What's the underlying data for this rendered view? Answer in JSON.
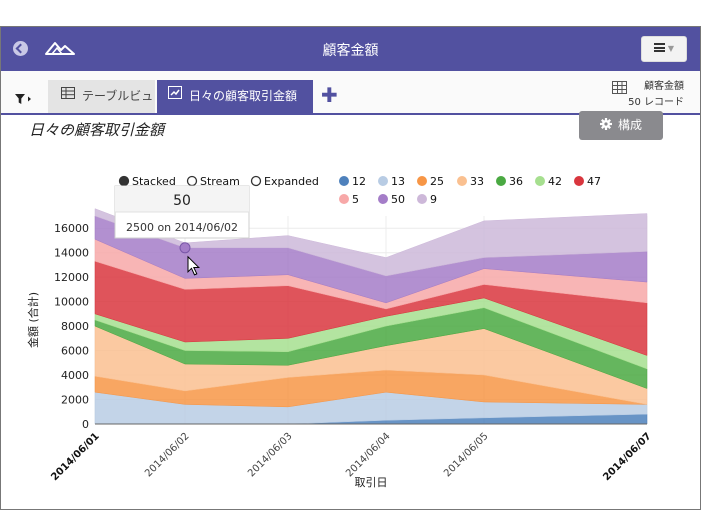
{
  "app": {
    "title": "顧客金額"
  },
  "tabs": [
    {
      "label": "テーブルビュー",
      "icon": "table-icon",
      "active": false
    },
    {
      "label": "日々の顧客取引金額",
      "icon": "chart-icon",
      "active": true
    }
  ],
  "record_info": {
    "table_name": "顧客金額",
    "count_label": "50 レコード"
  },
  "chart_title": "日々の顧客取引金額",
  "config_button_label": "構成",
  "mode_options": [
    {
      "label": "Stacked",
      "selected": true
    },
    {
      "label": "Stream",
      "selected": false
    },
    {
      "label": "Expanded",
      "selected": false
    }
  ],
  "tooltip": {
    "value": "50",
    "detail": "2500 on 2014/06/02"
  },
  "colors": {
    "accent": "#5251a0",
    "config_button": "#8a8a8e"
  },
  "chart_data": {
    "type": "area",
    "stacked": true,
    "x": [
      "2014/06/01",
      "2014/06/02",
      "2014/06/03",
      "2014/06/04",
      "2014/06/05",
      "2014/06/07"
    ],
    "xlabel": "取引日",
    "ylabel": "金額 (合計)",
    "ylim": [
      0,
      17000
    ],
    "yticks": [
      0,
      2000,
      4000,
      6000,
      8000,
      10000,
      12000,
      14000,
      16000
    ],
    "grid": true,
    "legend_position": "top-right",
    "highlight_point": {
      "series": "50",
      "x": "2014/06/02",
      "value": 2500
    },
    "series": [
      {
        "name": "12",
        "color": "#4e81bc",
        "values": [
          0,
          0,
          0,
          300,
          500,
          800
        ]
      },
      {
        "name": "13",
        "color": "#b8cce4",
        "values": [
          2600,
          1600,
          1400,
          2300,
          1300,
          800
        ]
      },
      {
        "name": "25",
        "color": "#f79646",
        "values": [
          1300,
          1100,
          2400,
          1800,
          2200,
          0
        ]
      },
      {
        "name": "33",
        "color": "#fac090",
        "values": [
          4100,
          2200,
          1000,
          2000,
          3800,
          1300
        ]
      },
      {
        "name": "36",
        "color": "#4aa942",
        "values": [
          500,
          1100,
          1100,
          1600,
          1700,
          1600
        ]
      },
      {
        "name": "42",
        "color": "#a6df8f",
        "values": [
          500,
          700,
          1100,
          800,
          800,
          1100
        ]
      },
      {
        "name": "47",
        "color": "#d9363e",
        "values": [
          4300,
          4300,
          4300,
          600,
          1100,
          4300
        ]
      },
      {
        "name": "5",
        "color": "#f7a8a8",
        "values": [
          1800,
          900,
          900,
          500,
          1300,
          1700
        ]
      },
      {
        "name": "50",
        "color": "#a47dc8",
        "values": [
          1900,
          2500,
          2200,
          2200,
          900,
          2500
        ]
      },
      {
        "name": "9",
        "color": "#cdb8d9",
        "values": [
          600,
          400,
          1000,
          1500,
          3000,
          3100
        ]
      }
    ]
  }
}
